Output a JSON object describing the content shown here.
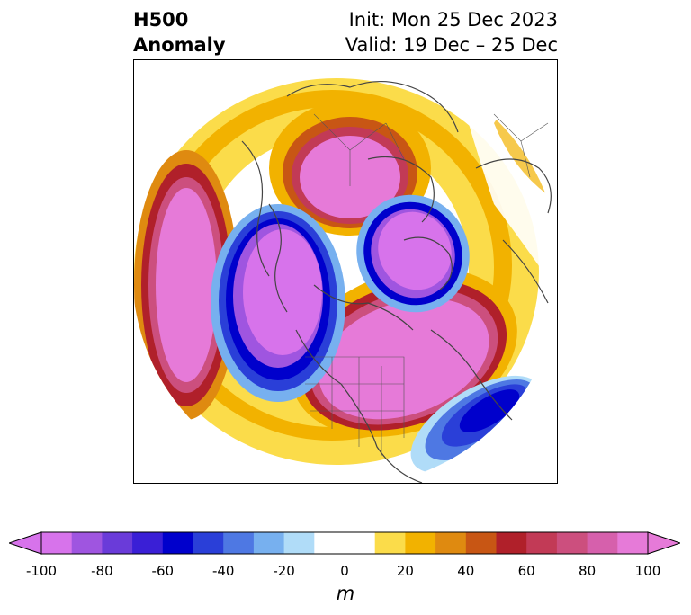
{
  "title": {
    "line1": "H500",
    "line2": "Anomaly",
    "init": "Init: Mon 25 Dec 2023",
    "valid": "Valid: 19 Dec – 25 Dec"
  },
  "colorbar": {
    "units": "m",
    "min": -100,
    "max": 100,
    "step": 10,
    "extend": "both",
    "colors": [
      "#d773eb",
      "#9f55e0",
      "#6a3bd9",
      "#3a1fd6",
      "#0000cc",
      "#2a3fd8",
      "#4e78e3",
      "#77b0ef",
      "#b0dcf8",
      "#ffffff",
      "#ffffff",
      "#fbdc4a",
      "#f2b200",
      "#df8a10",
      "#c85614",
      "#b0202a",
      "#c23a56",
      "#cc4f7e",
      "#d660ac",
      "#e67ad8"
    ],
    "tick_values": [
      -100,
      -80,
      -60,
      -40,
      -20,
      0,
      20,
      40,
      60,
      80,
      100
    ],
    "tick_labels": [
      "-100",
      "-80",
      "-60",
      "-40",
      "-20",
      "0",
      "20",
      "40",
      "60",
      "80",
      "100"
    ]
  },
  "map": {
    "projection": "north-polar-stereographic",
    "field": "500 hPa geopotential height anomaly",
    "features": [
      "coastlines",
      "country borders",
      "US state borders",
      "Canadian provinces"
    ]
  }
}
